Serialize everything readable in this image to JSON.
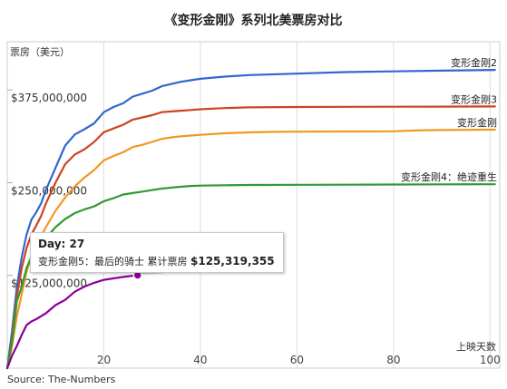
{
  "chart_data": {
    "type": "line",
    "title": "《变形金刚》系列北美票房对比",
    "ylabel": "票房（美元）",
    "xlabel": "上映天数",
    "xlim": [
      0,
      102
    ],
    "ylim": [
      0,
      440000000
    ],
    "x_ticks": [
      20,
      40,
      60,
      80,
      100
    ],
    "y_ticks": [
      {
        "value": 125000000,
        "label": "$125,000,000"
      },
      {
        "value": 250000000,
        "label": "$250,000,000"
      },
      {
        "value": 375000000,
        "label": "$375,000,000"
      }
    ],
    "grid": "vertical",
    "colors": {
      "变形金刚2": "#3366cc",
      "变形金刚3": "#cc4422",
      "变形金刚": "#ee9922",
      "变形金刚4：绝迹重生": "#339933",
      "变形金刚5：最后的骑士": "#880099"
    },
    "series": [
      {
        "name": "变形金刚2",
        "x": [
          0,
          1,
          2,
          3,
          4,
          5,
          6,
          7,
          8,
          10,
          12,
          14,
          16,
          18,
          20,
          22,
          24,
          26,
          28,
          30,
          32,
          34,
          36,
          38,
          40,
          45,
          50,
          60,
          70,
          80,
          90,
          101
        ],
        "y": [
          0,
          50000000,
          110000000,
          150000000,
          180000000,
          200000000,
          210000000,
          222000000,
          240000000,
          270000000,
          300000000,
          315000000,
          322000000,
          330000000,
          345000000,
          352000000,
          357000000,
          366000000,
          370000000,
          374000000,
          380000000,
          383000000,
          386000000,
          388000000,
          390000000,
          393000000,
          395000000,
          397000000,
          399000000,
          400000000,
          401000000,
          402000000
        ]
      },
      {
        "name": "变形金刚3",
        "x": [
          0,
          1,
          2,
          3,
          4,
          5,
          6,
          7,
          8,
          10,
          12,
          14,
          16,
          18,
          20,
          22,
          24,
          26,
          28,
          30,
          32,
          34,
          36,
          38,
          40,
          45,
          50,
          60,
          70,
          80,
          90,
          101
        ],
        "y": [
          0,
          40000000,
          97000000,
          135000000,
          162000000,
          180000000,
          192000000,
          205000000,
          222000000,
          250000000,
          275000000,
          288000000,
          295000000,
          305000000,
          318000000,
          323000000,
          328000000,
          335000000,
          338000000,
          341000000,
          345000000,
          346000000,
          347000000,
          348000000,
          349000000,
          350500000,
          351500000,
          352000000,
          352300000,
          352400000,
          352500000,
          352700000
        ]
      },
      {
        "name": "变形金刚",
        "x": [
          0,
          1,
          2,
          3,
          4,
          5,
          6,
          7,
          8,
          10,
          12,
          14,
          16,
          18,
          20,
          22,
          24,
          26,
          28,
          30,
          32,
          34,
          36,
          38,
          40,
          45,
          50,
          55,
          60,
          70,
          80,
          85,
          90,
          101
        ],
        "y": [
          0,
          30000000,
          70000000,
          100000000,
          130000000,
          150000000,
          165000000,
          178000000,
          190000000,
          212000000,
          230000000,
          245000000,
          257000000,
          267000000,
          280000000,
          286000000,
          291000000,
          298000000,
          301000000,
          305000000,
          309000000,
          311000000,
          312500000,
          313500000,
          314500000,
          316500000,
          317800000,
          318500000,
          318800000,
          319000000,
          319200000,
          320500000,
          321000000,
          321500000
        ]
      },
      {
        "name": "变形金刚4：绝迹重生",
        "x": [
          0,
          1,
          2,
          3,
          4,
          5,
          6,
          7,
          8,
          10,
          12,
          14,
          16,
          18,
          20,
          22,
          24,
          26,
          28,
          30,
          32,
          35,
          38,
          40,
          45,
          50,
          60,
          70,
          80,
          90,
          101
        ],
        "y": [
          0,
          35000000,
          90000000,
          110000000,
          135000000,
          150000000,
          160000000,
          168000000,
          175000000,
          190000000,
          201000000,
          209000000,
          214000000,
          218000000,
          225000000,
          229000000,
          234000000,
          236000000,
          238000000,
          240000000,
          242000000,
          244000000,
          245500000,
          246000000,
          246500000,
          246900000,
          247100000,
          247300000,
          247500000,
          247700000,
          247900000
        ]
      },
      {
        "name": "变形金刚5：最后的骑士",
        "x": [
          0,
          1,
          2,
          3,
          4,
          5,
          6,
          7,
          8,
          10,
          12,
          14,
          16,
          18,
          20,
          22,
          24,
          26,
          27
        ],
        "y": [
          0,
          17000000,
          30000000,
          45000000,
          58000000,
          63000000,
          66000000,
          70000000,
          74000000,
          85000000,
          92000000,
          103000000,
          110000000,
          115000000,
          119000000,
          121000000,
          123000000,
          124500000,
          125319355
        ]
      }
    ],
    "series_labels": [
      "变形金刚2",
      "变形金刚3",
      "变形金刚",
      "变形金刚4：绝迹重生"
    ],
    "tooltip": {
      "day_label": "Day: 27",
      "series_label": "变形金刚5：最后的骑士",
      "metric_label": "累计票房",
      "value": "$125,319,355"
    }
  },
  "source": "Source: The-Numbers"
}
